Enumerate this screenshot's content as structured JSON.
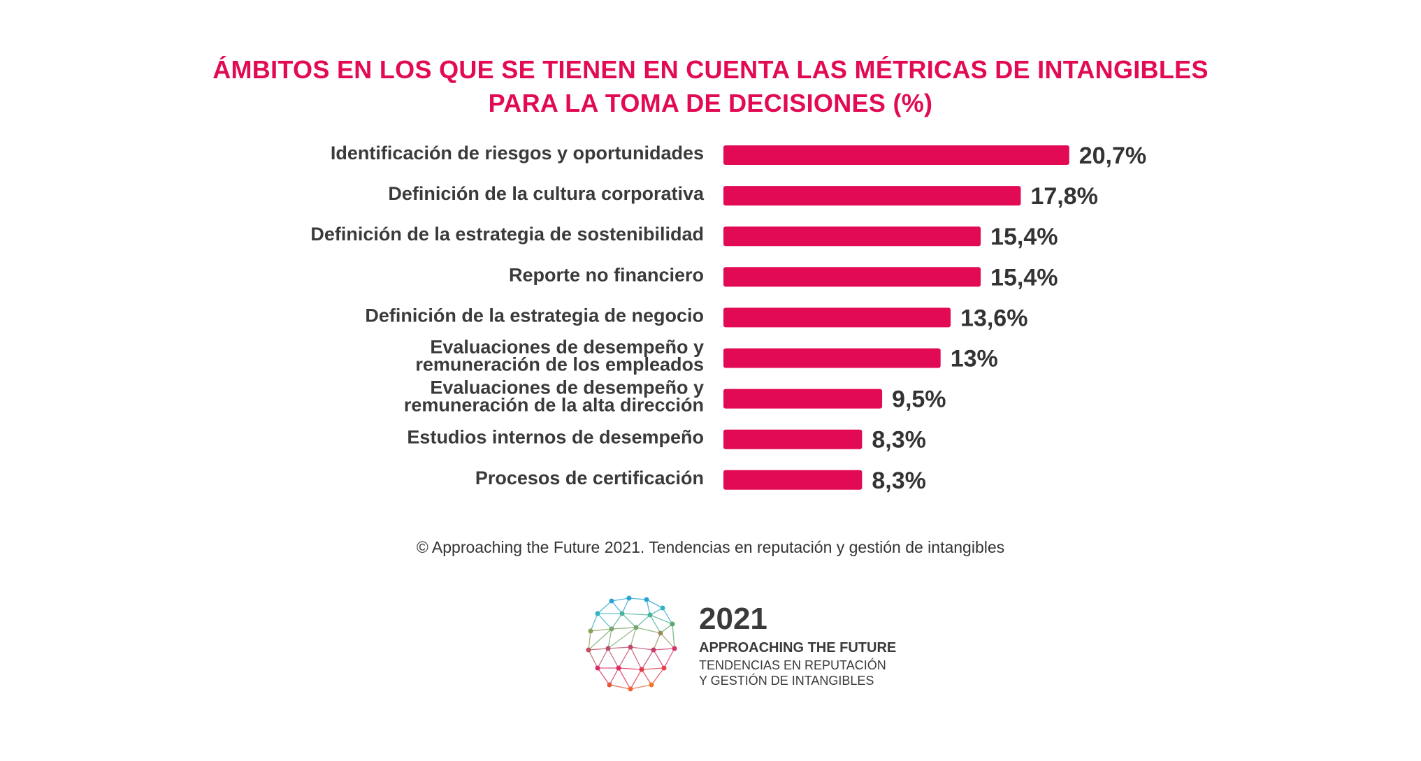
{
  "chart_data": {
    "type": "bar",
    "orientation": "horizontal",
    "title_line1": "ÁMBITOS EN LOS QUE SE TIENEN EN CUENTA LAS MÉTRICAS DE INTANGIBLES",
    "title_line2": "PARA LA TOMA DE DECISIONES (%)",
    "categories": [
      [
        "Identificación de riesgos y oportunidades"
      ],
      [
        "Definición de la cultura corporativa"
      ],
      [
        "Definición de la estrategia de sostenibilidad"
      ],
      [
        "Reporte no financiero"
      ],
      [
        "Definición de la estrategia de negocio"
      ],
      [
        "Evaluaciones de desempeño y",
        "remuneración de los empleados"
      ],
      [
        "Evaluaciones de desempeño y",
        "remuneración de la alta dirección"
      ],
      [
        "Estudios internos de desempeño"
      ],
      [
        "Procesos de certificación"
      ]
    ],
    "values": [
      20.7,
      17.8,
      15.4,
      15.4,
      13.6,
      13,
      9.5,
      8.3,
      8.3
    ],
    "value_labels": [
      "20,7%",
      "17,8%",
      "15,4%",
      "15,4%",
      "13,6%",
      "13%",
      "9,5%",
      "8,3%",
      "8,3%"
    ],
    "bar_color": "#e20a54",
    "xlabel": "",
    "ylabel": "",
    "grid": false
  },
  "source": "© Approaching the Future 2021. Tendencias en reputación y gestión de intangibles",
  "logo": {
    "year": "2021",
    "line1": "APPROACHING THE FUTURE",
    "line2": "TENDENCIAS EN REPUTACIÓN",
    "line3": "Y GESTIÓN DE INTANGIBLES"
  }
}
